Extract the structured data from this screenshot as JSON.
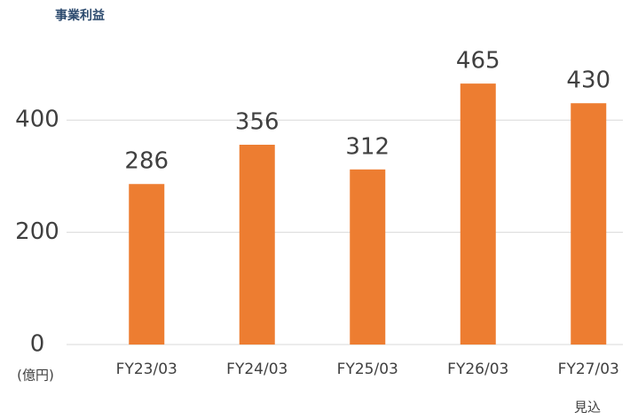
{
  "chart_data": {
    "type": "bar",
    "title": "事業利益",
    "y_unit": "(億円)",
    "categories": [
      "FY23/03",
      "FY24/03",
      "FY25/03",
      "FY26/03",
      "FY27/03"
    ],
    "values": [
      286,
      356,
      312,
      465,
      430
    ],
    "color": "#ed7d31",
    "annotation": "見込",
    "ylim": [
      0,
      500
    ],
    "yticks": [
      0,
      200,
      400
    ],
    "grid": true
  }
}
